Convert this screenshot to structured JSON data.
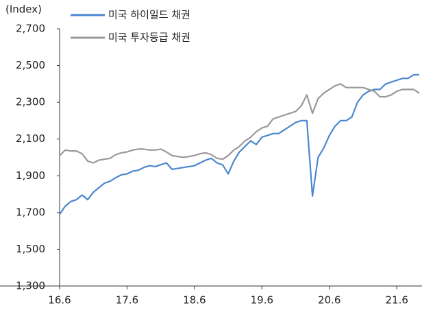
{
  "chart_data": {
    "type": "line",
    "y_label": "(Index)",
    "categories": [
      "16.6",
      null,
      null,
      null,
      null,
      null,
      null,
      null,
      null,
      null,
      null,
      null,
      "17.6",
      null,
      null,
      null,
      null,
      null,
      null,
      null,
      null,
      null,
      null,
      null,
      "18.6",
      null,
      null,
      null,
      null,
      null,
      null,
      null,
      null,
      null,
      null,
      null,
      "19.6",
      null,
      null,
      null,
      null,
      null,
      null,
      null,
      null,
      null,
      null,
      null,
      "20.6",
      null,
      null,
      null,
      null,
      null,
      null,
      null,
      null,
      null,
      null,
      null,
      "21.6",
      null,
      null,
      null,
      null
    ],
    "series": [
      {
        "name": "미국 하이일드 채권",
        "color": "#4a86d0",
        "values": [
          1690,
          1735,
          1760,
          1770,
          1795,
          1770,
          1810,
          1835,
          1860,
          1870,
          1890,
          1905,
          1910,
          1925,
          1930,
          1945,
          1955,
          1950,
          1960,
          1970,
          1935,
          1940,
          1945,
          1950,
          1955,
          1970,
          1985,
          1995,
          1970,
          1960,
          1910,
          1980,
          2030,
          2060,
          2090,
          2070,
          2110,
          2120,
          2130,
          2130,
          2150,
          2170,
          2190,
          2200,
          2200,
          1790,
          2000,
          2050,
          2120,
          2170,
          2200,
          2200,
          2220,
          2300,
          2340,
          2360,
          2370,
          2370,
          2400,
          2410,
          2420,
          2430,
          2430,
          2450,
          2450
        ]
      },
      {
        "name": "미국 투자등급 채권",
        "color": "#999999",
        "values": [
          2010,
          2040,
          2035,
          2035,
          2020,
          1980,
          1970,
          1985,
          1990,
          1995,
          2015,
          2025,
          2030,
          2040,
          2045,
          2045,
          2040,
          2040,
          2045,
          2030,
          2010,
          2005,
          2000,
          2005,
          2010,
          2020,
          2025,
          2015,
          1995,
          1990,
          2010,
          2040,
          2060,
          2090,
          2110,
          2140,
          2160,
          2170,
          2210,
          2220,
          2230,
          2240,
          2250,
          2280,
          2340,
          2240,
          2320,
          2350,
          2370,
          2390,
          2400,
          2380,
          2380,
          2380,
          2380,
          2370,
          2360,
          2330,
          2330,
          2340,
          2360,
          2370,
          2370,
          2370,
          2350
        ]
      }
    ],
    "ylim": [
      1300,
      2700
    ],
    "yticks": [
      {
        "value": 1300,
        "label": "1,300"
      },
      {
        "value": 1500,
        "label": "1,500"
      },
      {
        "value": 1700,
        "label": "1,700"
      },
      {
        "value": 1900,
        "label": "1,900"
      },
      {
        "value": 2100,
        "label": "2,100"
      },
      {
        "value": 2300,
        "label": "2,300"
      },
      {
        "value": 2500,
        "label": "2,500"
      },
      {
        "value": 2700,
        "label": "2,700"
      }
    ],
    "grid": false
  }
}
